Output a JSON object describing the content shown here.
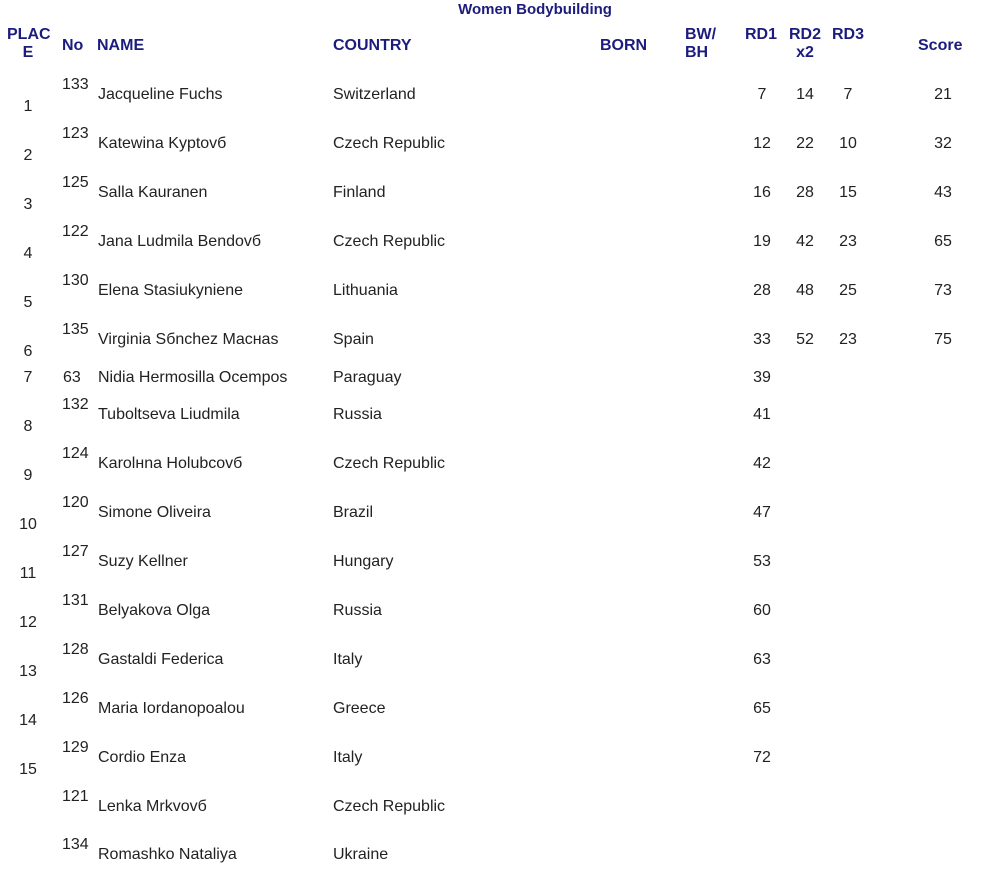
{
  "title": "Women Bodybuilding",
  "headers": {
    "place": "PLAC E",
    "place_line1": "PLAC",
    "place_line2": "E",
    "no": "No",
    "name": "NAME",
    "country": "COUNTRY",
    "born": "BORN",
    "bw_line1": "BW/",
    "bw_line2": "BH",
    "rd1": "RD1",
    "rd2_line1": "RD2",
    "rd2_line2": "x2",
    "rd3": "RD3",
    "score": "Score"
  },
  "colors": {
    "header": "#1c1c7e",
    "text": "#222222"
  },
  "rows": [
    {
      "place": "1",
      "no": "133",
      "name": "Jacqueline Fuchs",
      "country": "Switzerland",
      "rd1": "7",
      "rd2": "14",
      "rd3": "7",
      "score": "21"
    },
    {
      "place": "2",
      "no": "123",
      "name": "Katewina Kyptovб",
      "country": "Czech Republic",
      "rd1": "12",
      "rd2": "22",
      "rd3": "10",
      "score": "32"
    },
    {
      "place": "3",
      "no": "125",
      "name": "Salla Kauranen",
      "country": "Finland",
      "rd1": "16",
      "rd2": "28",
      "rd3": "15",
      "score": "43"
    },
    {
      "place": "4",
      "no": "122",
      "name": "Jana Ludmila Bendovб",
      "country": "Czech Republic",
      "rd1": "19",
      "rd2": "42",
      "rd3": "23",
      "score": "65"
    },
    {
      "place": "5",
      "no": "130",
      "name": "Elena Stasiukyniene",
      "country": "Lithuania",
      "rd1": "28",
      "rd2": "48",
      "rd3": "25",
      "score": "73"
    },
    {
      "place": "6",
      "no": "135",
      "name": "Virginia Sбnchez Macнas",
      "country": "Spain",
      "rd1": "33",
      "rd2": "52",
      "rd3": "23",
      "score": "75"
    },
    {
      "place": "7",
      "no": "63",
      "name": "Nidia Hermosilla Ocempos",
      "country": "Paraguay",
      "rd1": "39",
      "rd2": "",
      "rd3": "",
      "score": ""
    },
    {
      "place": "8",
      "no": "132",
      "name": "Tuboltseva Liudmila",
      "country": "Russia",
      "rd1": "41",
      "rd2": "",
      "rd3": "",
      "score": ""
    },
    {
      "place": "9",
      "no": "124",
      "name": "Karolнna Holubcovб",
      "country": "Czech Republic",
      "rd1": "42",
      "rd2": "",
      "rd3": "",
      "score": ""
    },
    {
      "place": "10",
      "no": "120",
      "name": "Simone Oliveira",
      "country": "Brazil",
      "rd1": "47",
      "rd2": "",
      "rd3": "",
      "score": ""
    },
    {
      "place": "11",
      "no": "127",
      "name": "Suzy Kellner",
      "country": "Hungary",
      "rd1": "53",
      "rd2": "",
      "rd3": "",
      "score": ""
    },
    {
      "place": "12",
      "no": "131",
      "name": "Belyakova Olga",
      "country": "Russia",
      "rd1": "60",
      "rd2": "",
      "rd3": "",
      "score": ""
    },
    {
      "place": "13",
      "no": "128",
      "name": "Gastaldi Federica",
      "country": "Italy",
      "rd1": "63",
      "rd2": "",
      "rd3": "",
      "score": ""
    },
    {
      "place": "14",
      "no": "126",
      "name": "Maria Iordanopoalou",
      "country": "Greece",
      "rd1": "65",
      "rd2": "",
      "rd3": "",
      "score": ""
    },
    {
      "place": "15",
      "no": "129",
      "name": "Cordio Enza",
      "country": "Italy",
      "rd1": "72",
      "rd2": "",
      "rd3": "",
      "score": ""
    },
    {
      "place": "",
      "no": "121",
      "name": "Lenka Mrkvovб",
      "country": "Czech Republic",
      "rd1": "",
      "rd2": "",
      "rd3": "",
      "score": ""
    },
    {
      "place": "",
      "no": "134",
      "name": "Romashko Nataliya",
      "country": "Ukraine",
      "rd1": "",
      "rd2": "",
      "rd3": "",
      "score": ""
    }
  ]
}
